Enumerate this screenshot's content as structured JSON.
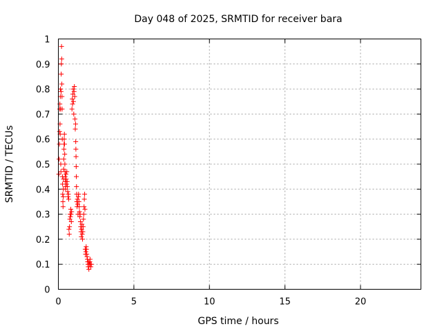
{
  "chart_data": {
    "type": "scatter",
    "title": "Day 048 of 2025, SRMTID for receiver bara",
    "xlabel": "GPS time / hours",
    "ylabel": "SRMTID / TECUs",
    "xlim": [
      0,
      24
    ],
    "ylim": [
      0,
      1
    ],
    "xticks": [
      0,
      5,
      10,
      15,
      20
    ],
    "yticks": [
      0,
      0.1,
      0.2,
      0.3,
      0.4,
      0.5,
      0.6,
      0.7,
      0.8,
      0.9,
      1
    ],
    "grid": true,
    "marker": "plus",
    "color": "#ff0000",
    "points": [
      [
        0.03,
        0.46
      ],
      [
        0.05,
        0.52
      ],
      [
        0.07,
        0.58
      ],
      [
        0.08,
        0.63
      ],
      [
        0.09,
        0.72
      ],
      [
        0.1,
        0.74
      ],
      [
        0.11,
        0.66
      ],
      [
        0.12,
        0.62
      ],
      [
        0.13,
        0.77
      ],
      [
        0.14,
        0.8
      ],
      [
        0.15,
        0.72
      ],
      [
        0.16,
        0.5
      ],
      [
        0.17,
        0.47
      ],
      [
        0.18,
        0.79
      ],
      [
        0.19,
        0.86
      ],
      [
        0.2,
        0.9
      ],
      [
        0.21,
        0.97
      ],
      [
        0.22,
        0.92
      ],
      [
        0.23,
        0.82
      ],
      [
        0.24,
        0.77
      ],
      [
        0.25,
        0.72
      ],
      [
        0.26,
        0.6
      ],
      [
        0.27,
        0.45
      ],
      [
        0.28,
        0.42
      ],
      [
        0.29,
        0.38
      ],
      [
        0.3,
        0.35
      ],
      [
        0.31,
        0.33
      ],
      [
        0.32,
        0.37
      ],
      [
        0.33,
        0.4
      ],
      [
        0.34,
        0.44
      ],
      [
        0.35,
        0.48
      ],
      [
        0.36,
        0.52
      ],
      [
        0.37,
        0.56
      ],
      [
        0.38,
        0.58
      ],
      [
        0.39,
        0.6
      ],
      [
        0.4,
        0.62
      ],
      [
        0.41,
        0.58
      ],
      [
        0.42,
        0.54
      ],
      [
        0.43,
        0.5
      ],
      [
        0.44,
        0.47
      ],
      [
        0.45,
        0.45
      ],
      [
        0.46,
        0.43
      ],
      [
        0.47,
        0.41
      ],
      [
        0.48,
        0.4
      ],
      [
        0.5,
        0.46
      ],
      [
        0.52,
        0.44
      ],
      [
        0.54,
        0.42
      ],
      [
        0.56,
        0.47
      ],
      [
        0.58,
        0.43
      ],
      [
        0.6,
        0.41
      ],
      [
        0.62,
        0.39
      ],
      [
        0.64,
        0.37
      ],
      [
        0.66,
        0.38
      ],
      [
        0.68,
        0.36
      ],
      [
        0.7,
        0.24
      ],
      [
        0.72,
        0.22
      ],
      [
        0.74,
        0.25
      ],
      [
        0.76,
        0.28
      ],
      [
        0.78,
        0.3
      ],
      [
        0.8,
        0.29
      ],
      [
        0.82,
        0.32
      ],
      [
        0.84,
        0.3
      ],
      [
        0.86,
        0.27
      ],
      [
        0.88,
        0.31
      ],
      [
        0.9,
        0.72
      ],
      [
        0.92,
        0.76
      ],
      [
        0.94,
        0.74
      ],
      [
        0.96,
        0.78
      ],
      [
        0.98,
        0.8
      ],
      [
        1.0,
        0.75
      ],
      [
        1.02,
        0.7
      ],
      [
        1.04,
        0.79
      ],
      [
        1.06,
        0.81
      ],
      [
        1.08,
        0.77
      ],
      [
        1.1,
        0.68
      ],
      [
        1.12,
        0.64
      ],
      [
        1.14,
        0.66
      ],
      [
        1.15,
        0.59
      ],
      [
        1.16,
        0.56
      ],
      [
        1.17,
        0.53
      ],
      [
        1.18,
        0.49
      ],
      [
        1.19,
        0.45
      ],
      [
        1.2,
        0.41
      ],
      [
        1.21,
        0.38
      ],
      [
        1.22,
        0.35
      ],
      [
        1.24,
        0.33
      ],
      [
        1.26,
        0.36
      ],
      [
        1.28,
        0.34
      ],
      [
        1.3,
        0.3
      ],
      [
        1.32,
        0.37
      ],
      [
        1.34,
        0.38
      ],
      [
        1.36,
        0.35
      ],
      [
        1.38,
        0.33
      ],
      [
        1.4,
        0.31
      ],
      [
        1.42,
        0.29
      ],
      [
        1.44,
        0.3
      ],
      [
        1.46,
        0.27
      ],
      [
        1.48,
        0.25
      ],
      [
        1.5,
        0.23
      ],
      [
        1.52,
        0.21
      ],
      [
        1.54,
        0.24
      ],
      [
        1.56,
        0.26
      ],
      [
        1.58,
        0.22
      ],
      [
        1.6,
        0.2
      ],
      [
        1.62,
        0.23
      ],
      [
        1.64,
        0.25
      ],
      [
        1.66,
        0.28
      ],
      [
        1.68,
        0.3
      ],
      [
        1.7,
        0.33
      ],
      [
        1.72,
        0.36
      ],
      [
        1.74,
        0.38
      ],
      [
        1.76,
        0.32
      ],
      [
        1.78,
        0.16
      ],
      [
        1.8,
        0.14
      ],
      [
        1.82,
        0.15
      ],
      [
        1.84,
        0.17
      ],
      [
        1.86,
        0.16
      ],
      [
        1.88,
        0.14
      ],
      [
        1.9,
        0.13
      ],
      [
        1.92,
        0.12
      ],
      [
        1.94,
        0.11
      ],
      [
        1.96,
        0.1
      ],
      [
        1.98,
        0.09
      ],
      [
        2.0,
        0.11
      ],
      [
        2.02,
        0.08
      ],
      [
        2.05,
        0.1
      ],
      [
        2.08,
        0.11
      ],
      [
        2.1,
        0.12
      ],
      [
        2.12,
        0.1
      ],
      [
        2.15,
        0.09
      ],
      [
        2.18,
        0.1
      ]
    ]
  }
}
